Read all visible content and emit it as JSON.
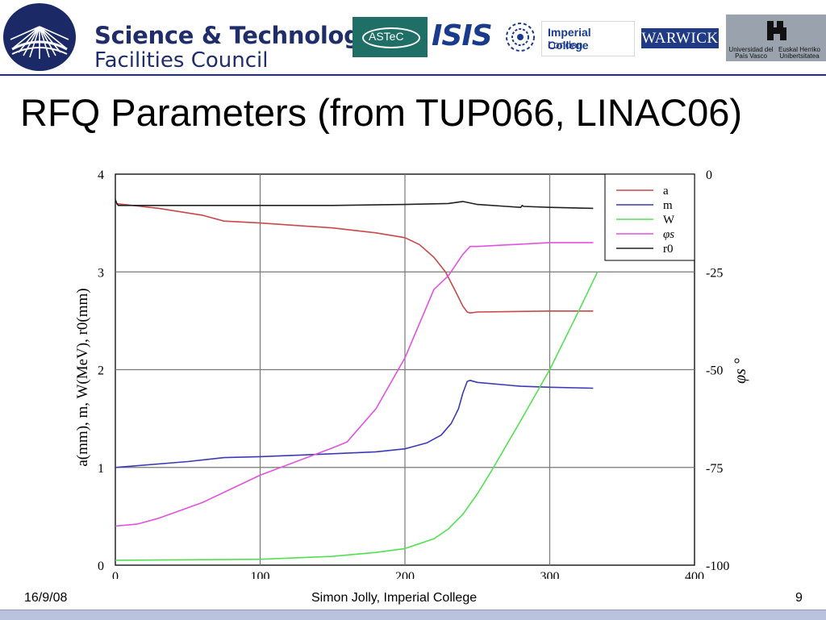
{
  "header": {
    "stfc_line1": "Science & Technology",
    "stfc_line2": "Facilities Council",
    "astec": "ASTeC",
    "isis": "ISIS",
    "imperial_line1": "Imperial College",
    "imperial_line2": "London",
    "warwick": "WARWICK",
    "ehu_left": "Universidad del País Vasco",
    "ehu_right": "Euskal Herriko Unibertsitatea"
  },
  "slide": {
    "title": "RFQ Parameters (from TUP066, LINAC06)"
  },
  "footer": {
    "date": "16/9/08",
    "author": "Simon Jolly, Imperial College",
    "page": "9"
  },
  "colors": {
    "a": "#c84848",
    "m": "#3a3ab4",
    "W": "#52e052",
    "phi_s": "#e052e0",
    "r0": "#202020"
  },
  "chart_data": {
    "type": "line",
    "ylabel": "a(mm), m, W(MeV), r0(mm)",
    "ylabel2": "φs °",
    "xlim": [
      0,
      400
    ],
    "ylim": [
      0,
      4
    ],
    "y2lim": [
      -100,
      0
    ],
    "xticks": [
      0,
      100,
      200,
      300,
      400
    ],
    "yticks": [
      0,
      1,
      2,
      3,
      4
    ],
    "y2ticks": [
      0,
      -25,
      -50,
      -75,
      -100
    ],
    "grid": true,
    "legend_position": "top-right",
    "series": [
      {
        "name": "a",
        "key": "a",
        "axis": "left",
        "x": [
          0,
          30,
          60,
          75,
          100,
          150,
          180,
          200,
          210,
          220,
          228,
          235,
          240,
          243,
          245,
          250,
          300,
          330
        ],
        "y": [
          3.7,
          3.65,
          3.58,
          3.52,
          3.5,
          3.45,
          3.4,
          3.35,
          3.28,
          3.15,
          3.0,
          2.8,
          2.65,
          2.59,
          2.58,
          2.59,
          2.6,
          2.6
        ]
      },
      {
        "name": "m",
        "key": "m",
        "axis": "left",
        "x": [
          0,
          50,
          75,
          100,
          150,
          180,
          200,
          215,
          225,
          232,
          237,
          240,
          243,
          245,
          250,
          280,
          300,
          330
        ],
        "y": [
          1.0,
          1.06,
          1.1,
          1.11,
          1.14,
          1.16,
          1.19,
          1.25,
          1.33,
          1.45,
          1.6,
          1.76,
          1.88,
          1.89,
          1.87,
          1.83,
          1.82,
          1.81
        ],
        "label": "m"
      },
      {
        "name": "W",
        "key": "W",
        "axis": "left",
        "x": [
          0,
          100,
          150,
          180,
          200,
          220,
          230,
          240,
          250,
          260,
          280,
          300,
          320,
          333
        ],
        "y": [
          0.05,
          0.06,
          0.09,
          0.13,
          0.17,
          0.27,
          0.37,
          0.52,
          0.73,
          0.97,
          1.48,
          2.0,
          2.6,
          3.0
        ]
      },
      {
        "name": "φs",
        "key": "phi_s",
        "axis": "right",
        "x": [
          0,
          15,
          30,
          60,
          100,
          150,
          160,
          180,
          200,
          220,
          230,
          240,
          245,
          250,
          300,
          330
        ],
        "y": [
          -90,
          -89.5,
          -88,
          -84,
          -77,
          -70,
          -68.5,
          -60,
          -47,
          -29.5,
          -26,
          -20.5,
          -18.5,
          -18.5,
          -17.5,
          -17.5
        ]
      },
      {
        "name": "r0",
        "key": "r0",
        "axis": "left",
        "x": [
          0,
          1,
          2,
          50,
          100,
          150,
          200,
          230,
          240,
          250,
          270,
          280,
          281,
          282,
          300,
          330
        ],
        "y": [
          3.74,
          3.7,
          3.68,
          3.68,
          3.68,
          3.68,
          3.69,
          3.7,
          3.72,
          3.69,
          3.67,
          3.66,
          3.68,
          3.67,
          3.66,
          3.65
        ]
      }
    ]
  }
}
